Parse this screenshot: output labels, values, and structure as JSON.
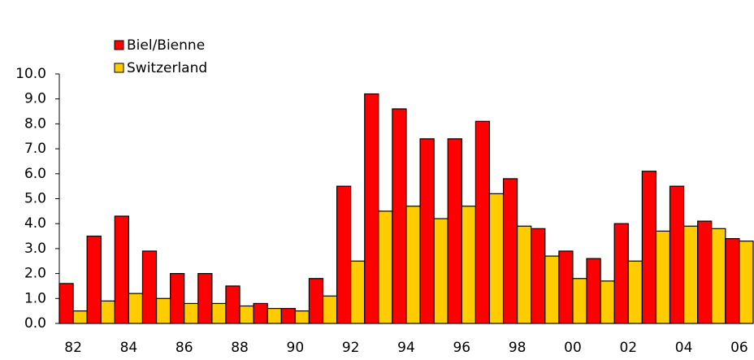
{
  "chart_data": {
    "type": "bar",
    "categories": [
      "82",
      null,
      "84",
      null,
      "86",
      null,
      "88",
      null,
      "90",
      null,
      "92",
      null,
      "94",
      null,
      "96",
      null,
      "98",
      null,
      "00",
      null,
      "02",
      null,
      "04",
      null,
      "06"
    ],
    "series": [
      {
        "name": "Biel/Bienne",
        "color": "#ff0000",
        "values": [
          1.6,
          3.5,
          4.3,
          2.9,
          2.0,
          2.0,
          1.5,
          0.8,
          0.6,
          1.8,
          5.5,
          9.2,
          8.6,
          7.4,
          7.4,
          8.1,
          5.8,
          3.8,
          2.9,
          2.6,
          4.0,
          6.1,
          5.5,
          4.1,
          3.4
        ]
      },
      {
        "name": "Switzerland",
        "color": "#ffcc00",
        "values": [
          0.5,
          0.9,
          1.2,
          1.0,
          0.8,
          0.8,
          0.7,
          0.6,
          0.5,
          1.1,
          2.5,
          4.5,
          4.7,
          4.2,
          4.7,
          5.2,
          3.9,
          2.7,
          1.8,
          1.7,
          2.5,
          3.7,
          3.9,
          3.8,
          3.3
        ]
      }
    ],
    "ylim": [
      0,
      10
    ],
    "yticks": [
      {
        "value": 0,
        "label": "0.0"
      },
      {
        "value": 1,
        "label": "1.0"
      },
      {
        "value": 2,
        "label": "2.0"
      },
      {
        "value": 3,
        "label": "3.0"
      },
      {
        "value": 4,
        "label": "4.0"
      },
      {
        "value": 5,
        "label": "5.0"
      },
      {
        "value": 6,
        "label": "6.0"
      },
      {
        "value": 7,
        "label": "7.0"
      },
      {
        "value": 8,
        "label": "8.0"
      },
      {
        "value": 9,
        "label": "9.0"
      },
      {
        "value": 10,
        "label": "10.0"
      }
    ],
    "legend": "top-left"
  }
}
